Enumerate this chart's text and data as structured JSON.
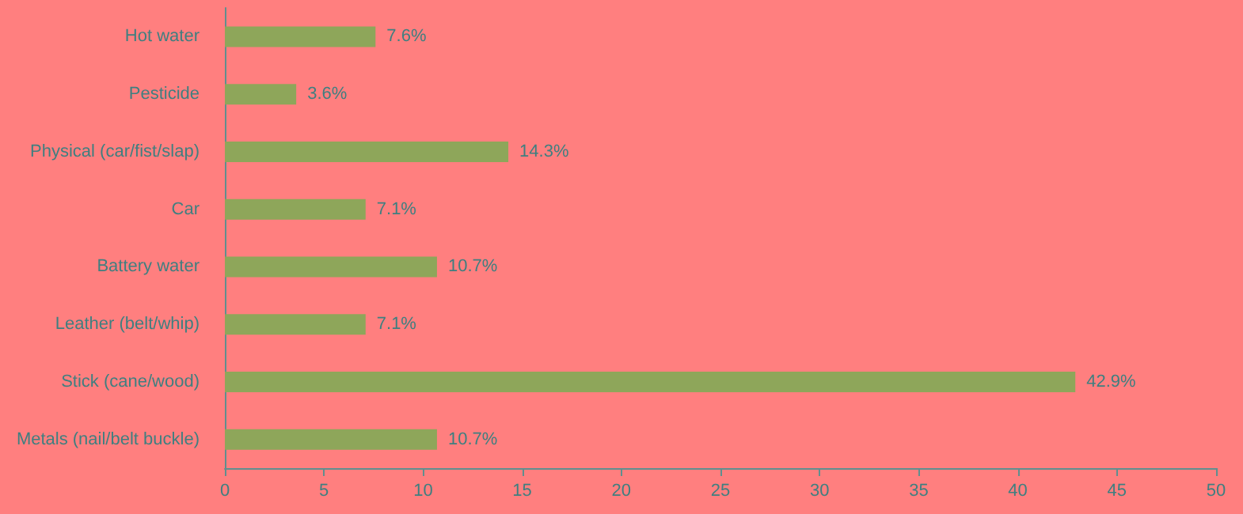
{
  "chart_data": {
    "type": "bar",
    "orientation": "horizontal",
    "categories": [
      "Hot water",
      "Pesticide",
      "Physical (car/fist/slap)",
      "Car",
      "Battery water",
      "Leather (belt/whip)",
      "Stick (cane/wood)",
      "Metals (nail/belt buckle)"
    ],
    "values": [
      7.6,
      3.6,
      14.3,
      7.1,
      10.7,
      7.1,
      42.9,
      10.7
    ],
    "value_labels": [
      "7.6%",
      "3.6%",
      "14.3%",
      "7.1%",
      "10.7%",
      "7.1%",
      "42.9%",
      "10.7%"
    ],
    "color": "#8ea65a",
    "xlim": [
      0,
      50
    ],
    "xticks": [
      0,
      5,
      10,
      15,
      20,
      25,
      30,
      35,
      40,
      45,
      50
    ],
    "grid": false
  }
}
